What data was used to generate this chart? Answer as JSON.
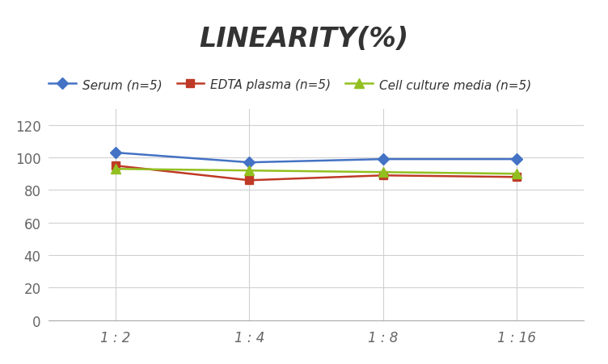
{
  "title": "LINEARITY(%)",
  "x_labels": [
    "1 : 2",
    "1 : 4",
    "1 : 8",
    "1 : 16"
  ],
  "x_positions": [
    0,
    1,
    2,
    3
  ],
  "series": [
    {
      "label": "Serum (n=5)",
      "values": [
        103,
        97,
        99,
        99
      ],
      "color": "#4472C4",
      "marker": "D",
      "marker_size": 7,
      "linewidth": 1.8
    },
    {
      "label": "EDTA plasma (n=5)",
      "values": [
        95,
        86,
        89,
        88
      ],
      "color": "#BE3A26",
      "marker": "s",
      "marker_size": 7,
      "linewidth": 1.8
    },
    {
      "label": "Cell culture media (n=5)",
      "values": [
        93,
        92,
        91,
        90
      ],
      "color": "#92C020",
      "marker": "^",
      "marker_size": 8,
      "linewidth": 1.8
    }
  ],
  "ylim": [
    0,
    130
  ],
  "yticks": [
    0,
    20,
    40,
    60,
    80,
    100,
    120
  ],
  "grid_color": "#D0D0D0",
  "background_color": "#FFFFFF",
  "title_fontsize": 24,
  "legend_fontsize": 11,
  "tick_fontsize": 12,
  "tick_color": "#666666"
}
